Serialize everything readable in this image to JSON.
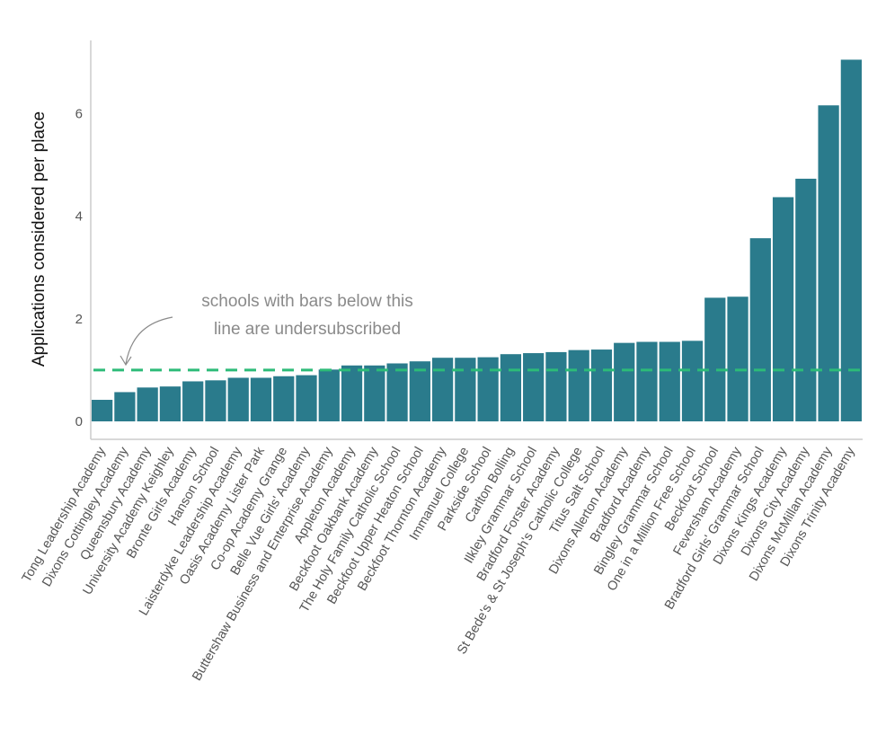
{
  "chart_data": {
    "type": "bar",
    "title": "",
    "xlabel": "",
    "ylabel": "Applications considered per place",
    "ylim": [
      0,
      7.3
    ],
    "yticks": [
      0,
      2,
      4,
      6
    ],
    "grid": false,
    "categories": [
      "Tong Leadership Academy",
      "Dixons Cottingley Academy",
      "Queensbury Academy",
      "University Academy Keighley",
      "Bronte Girls Academy",
      "Hanson School",
      "Laisterdyke Leadership Academy",
      "Oasis Academy Lister Park",
      "Co-op Academy Grange",
      "Belle Vue Girls' Academy",
      "Buttershaw Business and Enterprise Academy",
      "Appleton Academy",
      "Beckfoot Oakbank Academy",
      "The Holy Family Catholic School",
      "Beckfoot Upper Heaton School",
      "Beckfoot Thornton Academy",
      "Immanuel College",
      "Parkside School",
      "Carlton Bolling",
      "Ilkley Grammar School",
      "Bradford Forster Academy",
      "St Bede's & St Joseph's Catholic College",
      "Titus Salt School",
      "Dixons Allerton Academy",
      "Bradford Academy",
      "Bingley Grammar School",
      "One in a Million Free School",
      "Beckfoot School",
      "Feversham Academy",
      "Bradford Girls' Grammar School",
      "Dixons Kings Academy",
      "Dixons City Academy",
      "Dixons McMillan Academy",
      "Dixons Trinity Academy"
    ],
    "values": [
      0.42,
      0.57,
      0.66,
      0.68,
      0.78,
      0.8,
      0.85,
      0.85,
      0.88,
      0.9,
      1.01,
      1.09,
      1.09,
      1.13,
      1.17,
      1.24,
      1.24,
      1.25,
      1.31,
      1.33,
      1.35,
      1.39,
      1.4,
      1.53,
      1.55,
      1.55,
      1.57,
      2.41,
      2.43,
      3.57,
      4.37,
      4.73,
      6.16,
      7.05
    ],
    "bar_color": "#2a7b8c",
    "reference_line": {
      "value": 1,
      "color": "#2dbb78",
      "style": "dashed"
    },
    "annotation": {
      "lines": [
        "schools with bars below this",
        "line are undersubscribed"
      ],
      "color": "#8a8a8a"
    }
  }
}
